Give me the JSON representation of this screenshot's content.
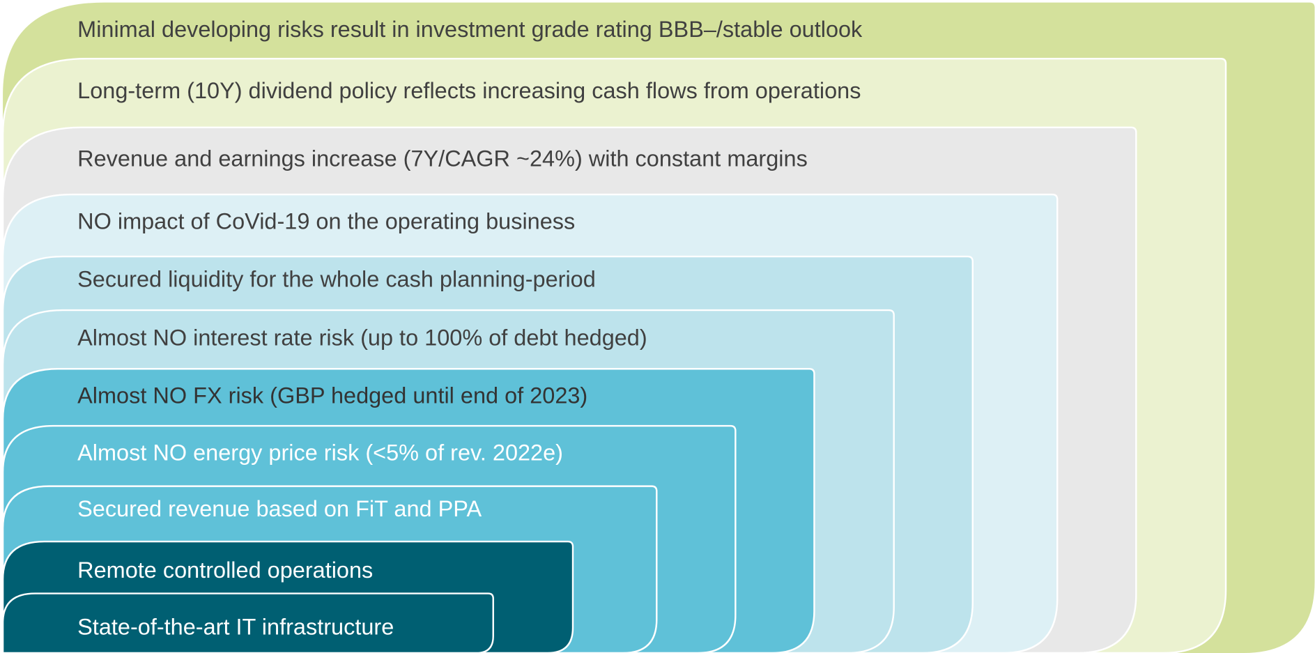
{
  "layers": [
    {
      "text": "Minimal developing risks result in investment grade rating BBB–/stable outlook"
    },
    {
      "text": "Long-term (10Y) dividend policy reflects increasing cash flows from operations"
    },
    {
      "text": "Revenue and earnings increase (7Y/CAGR ~24%) with constant margins"
    },
    {
      "text": "NO impact of CoVid-19 on the operating business"
    },
    {
      "text": "Secured liquidity for the whole cash planning-period"
    },
    {
      "text": "Almost NO interest rate risk (up to 100% of debt hedged)"
    },
    {
      "text": "Almost NO FX risk (GBP hedged until end of 2023)"
    },
    {
      "text": "Almost NO energy price risk (<5% of rev. 2022e)"
    },
    {
      "text": "Secured revenue based on FiT and PPA"
    },
    {
      "text": "Remote controlled operations"
    },
    {
      "text": "State-of-the-art IT infrastructure"
    }
  ]
}
